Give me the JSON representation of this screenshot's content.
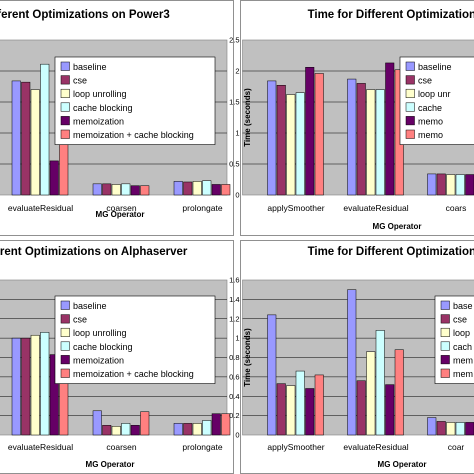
{
  "colors": {
    "baseline": "#9999ff",
    "cse": "#993366",
    "loop_unrolling": "#ffffcc",
    "cache_blocking": "#ccffff",
    "memoization": "#660066",
    "memo_cache": "#ff8080",
    "plot_bg": "#c0c0c0",
    "frame_border": "#909090"
  },
  "chart_data": [
    {
      "type": "bar",
      "title": "ifferent Optimizations on Power3",
      "xlabel": "MG Operator",
      "ylabel": "",
      "ylim": [
        0,
        2.5
      ],
      "yticks": [],
      "categories": [
        "evaluateResidual",
        "coarsen",
        "prolongate"
      ],
      "series": [
        {
          "name": "baseline",
          "values": [
            1.84,
            0.18,
            0.22
          ]
        },
        {
          "name": "cse",
          "values": [
            1.82,
            0.18,
            0.21
          ]
        },
        {
          "name": "loop unrolling",
          "values": [
            1.7,
            0.17,
            0.22
          ]
        },
        {
          "name": "cache blocking",
          "values": [
            2.11,
            0.18,
            0.23
          ]
        },
        {
          "name": "memoization",
          "values": [
            0.55,
            0.15,
            0.17
          ]
        },
        {
          "name": "memoization + cache blocking",
          "values": [
            1.05,
            0.15,
            0.17
          ]
        }
      ],
      "legend": "right"
    },
    {
      "type": "bar",
      "title": "Time for Different Optimizations",
      "xlabel": "MG Operator",
      "ylabel": "Time (seconds)",
      "ylim": [
        0,
        2.5
      ],
      "yticks": [
        "0",
        "0.5",
        "1",
        "1.5",
        "2",
        "2.5"
      ],
      "categories": [
        "applySmoother",
        "evaluateResidual",
        "coars"
      ],
      "series": [
        {
          "name": "baseline",
          "values": [
            1.84,
            1.87,
            0.34
          ]
        },
        {
          "name": "cse",
          "values": [
            1.77,
            1.8,
            0.34
          ]
        },
        {
          "name": "loop unr",
          "values": [
            1.62,
            1.7,
            0.33
          ]
        },
        {
          "name": "cache",
          "values": [
            1.65,
            1.7,
            0.33
          ]
        },
        {
          "name": "memo",
          "values": [
            2.06,
            2.13,
            0.33
          ]
        },
        {
          "name": "memo",
          "values": [
            1.96,
            2.02,
            0.33
          ]
        }
      ],
      "legend": "right"
    },
    {
      "type": "bar",
      "title": "ifferent Optimizations on Alphaserver",
      "xlabel": "MG Operator",
      "ylabel": "",
      "ylim": [
        0,
        1.6
      ],
      "yticks": [],
      "categories": [
        "evaluateResidual",
        "coarsen",
        "prolongate"
      ],
      "series": [
        {
          "name": "baseline",
          "values": [
            1.0,
            0.25,
            0.12
          ]
        },
        {
          "name": "cse",
          "values": [
            1.0,
            0.1,
            0.12
          ]
        },
        {
          "name": "loop unrolling",
          "values": [
            1.03,
            0.09,
            0.12
          ]
        },
        {
          "name": "cache blocking",
          "values": [
            1.06,
            0.12,
            0.15
          ]
        },
        {
          "name": "memoization",
          "values": [
            0.83,
            0.1,
            0.22
          ]
        },
        {
          "name": "memoization + cache blocking",
          "values": [
            0.93,
            0.24,
            0.22
          ]
        }
      ],
      "legend": "right"
    },
    {
      "type": "bar",
      "title": "Time for Different Optimizations",
      "xlabel": "MG Operator",
      "ylabel": "Time (seconds)",
      "ylim": [
        0,
        1.6
      ],
      "yticks": [
        "0",
        "0.2",
        "0.4",
        "0.6",
        "0.8",
        "1",
        "1.2",
        "1.4",
        "1.6"
      ],
      "categories": [
        "applySmoother",
        "evaluateResidual",
        "coar"
      ],
      "series": [
        {
          "name": "base",
          "values": [
            1.24,
            1.5,
            0.18
          ]
        },
        {
          "name": "cse",
          "values": [
            0.53,
            0.56,
            0.14
          ]
        },
        {
          "name": "loop",
          "values": [
            0.51,
            0.86,
            0.13
          ]
        },
        {
          "name": "cach",
          "values": [
            0.66,
            1.08,
            0.13
          ]
        },
        {
          "name": "mem",
          "values": [
            0.48,
            0.52,
            0.13
          ]
        },
        {
          "name": "mem",
          "values": [
            0.62,
            0.88,
            0.13
          ]
        }
      ],
      "legend": "right"
    }
  ]
}
